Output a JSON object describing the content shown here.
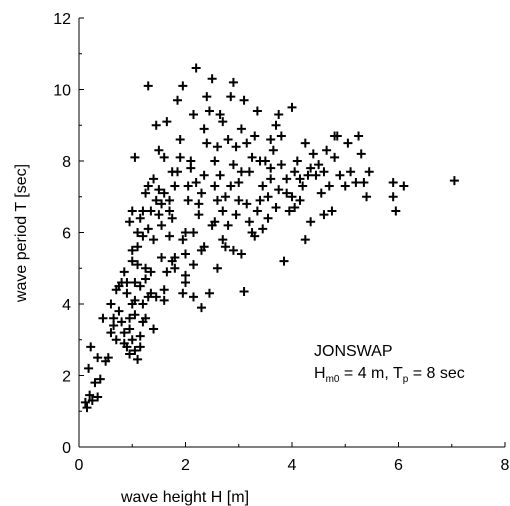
{
  "chart_data": {
    "type": "scatter",
    "marker": "plus",
    "title": "",
    "xlabel": "wave height H [m]",
    "ylabel": "wave period T [sec]",
    "xlim": [
      0,
      8
    ],
    "ylim": [
      0,
      12
    ],
    "xticks": [
      0,
      2,
      4,
      6,
      8
    ],
    "yticks": [
      0,
      2,
      4,
      6,
      8,
      10,
      12
    ],
    "grid": false,
    "annotation": {
      "line1": "JONSWAP",
      "h_main": "H",
      "h_sub": "m0",
      "h_rest": " = 4 m, T",
      "t_sub": "p",
      "t_rest": " = 8 sec"
    },
    "points": [
      [
        0.12,
        1.25
      ],
      [
        0.15,
        1.1
      ],
      [
        0.2,
        1.45
      ],
      [
        0.25,
        1.3
      ],
      [
        0.3,
        1.8
      ],
      [
        0.35,
        1.4
      ],
      [
        0.4,
        1.9
      ],
      [
        0.18,
        2.2
      ],
      [
        0.22,
        2.8
      ],
      [
        0.35,
        2.5
      ],
      [
        0.45,
        3.6
      ],
      [
        0.5,
        2.4
      ],
      [
        0.55,
        2.5
      ],
      [
        0.6,
        3.2
      ],
      [
        0.65,
        3.4
      ],
      [
        0.7,
        3.0
      ],
      [
        0.75,
        3.8
      ],
      [
        0.8,
        4.6
      ],
      [
        0.85,
        4.9
      ],
      [
        0.9,
        4.3
      ],
      [
        0.95,
        3.6
      ],
      [
        1.0,
        5.2
      ],
      [
        1.05,
        4.1
      ],
      [
        1.1,
        5.6
      ],
      [
        0.6,
        4.0
      ],
      [
        0.7,
        4.4
      ],
      [
        0.8,
        3.5
      ],
      [
        0.85,
        2.9
      ],
      [
        0.9,
        2.8
      ],
      [
        0.95,
        2.6
      ],
      [
        1.0,
        3.0
      ],
      [
        1.05,
        2.7
      ],
      [
        1.1,
        2.45
      ],
      [
        1.15,
        2.8
      ],
      [
        1.2,
        3.5
      ],
      [
        1.25,
        3.6
      ],
      [
        0.95,
        6.3
      ],
      [
        1.0,
        6.6
      ],
      [
        1.0,
        5.5
      ],
      [
        1.05,
        8.1
      ],
      [
        1.1,
        6.0
      ],
      [
        1.15,
        4.5
      ],
      [
        1.2,
        4.0
      ],
      [
        1.25,
        5.0
      ],
      [
        1.3,
        10.1
      ],
      [
        1.35,
        4.3
      ],
      [
        1.4,
        5.8
      ],
      [
        1.45,
        6.9
      ],
      [
        1.5,
        8.3
      ],
      [
        1.5,
        7.2
      ],
      [
        1.55,
        6.2
      ],
      [
        1.6,
        4.1
      ],
      [
        1.65,
        9.1
      ],
      [
        1.7,
        6.6
      ],
      [
        1.75,
        7.7
      ],
      [
        1.8,
        5.3
      ],
      [
        1.85,
        9.7
      ],
      [
        1.9,
        8.6
      ],
      [
        1.95,
        10.1
      ],
      [
        2.0,
        6.0
      ],
      [
        2.0,
        4.8
      ],
      [
        2.05,
        7.3
      ],
      [
        2.1,
        8.0
      ],
      [
        2.15,
        9.3
      ],
      [
        2.2,
        10.6
      ],
      [
        2.25,
        6.8
      ],
      [
        2.3,
        5.5
      ],
      [
        2.35,
        7.6
      ],
      [
        2.4,
        9.8
      ],
      [
        2.45,
        4.3
      ],
      [
        2.5,
        10.3
      ],
      [
        2.55,
        6.3
      ],
      [
        2.6,
        8.4
      ],
      [
        2.65,
        9.3
      ],
      [
        2.7,
        5.8
      ],
      [
        2.75,
        7.0
      ],
      [
        2.8,
        8.6
      ],
      [
        2.85,
        9.8
      ],
      [
        2.9,
        10.2
      ],
      [
        2.95,
        6.5
      ],
      [
        3.0,
        7.4
      ],
      [
        3.05,
        8.9
      ],
      [
        3.1,
        9.7
      ],
      [
        3.15,
        6.8
      ],
      [
        3.2,
        7.7
      ],
      [
        3.25,
        8.1
      ],
      [
        3.3,
        5.9
      ],
      [
        3.35,
        9.4
      ],
      [
        3.4,
        6.9
      ],
      [
        3.45,
        7.3
      ],
      [
        3.5,
        8.0
      ],
      [
        3.55,
        6.4
      ],
      [
        3.6,
        7.8
      ],
      [
        3.65,
        8.3
      ],
      [
        3.7,
        6.7
      ],
      [
        3.75,
        7.2
      ],
      [
        3.8,
        8.7
      ],
      [
        3.85,
        5.2
      ],
      [
        3.9,
        7.5
      ],
      [
        3.95,
        6.6
      ],
      [
        4.0,
        9.5
      ],
      [
        4.05,
        7.7
      ],
      [
        4.1,
        8.0
      ],
      [
        4.15,
        6.9
      ],
      [
        4.2,
        7.3
      ],
      [
        4.25,
        8.5
      ],
      [
        4.3,
        7.6
      ],
      [
        4.35,
        6.3
      ],
      [
        4.4,
        8.2
      ],
      [
        4.5,
        7.9
      ],
      [
        4.55,
        7.1
      ],
      [
        4.6,
        6.5
      ],
      [
        4.65,
        8.3
      ],
      [
        4.7,
        7.3
      ],
      [
        4.75,
        6.6
      ],
      [
        4.8,
        8.1
      ],
      [
        4.85,
        8.7
      ],
      [
        4.9,
        7.6
      ],
      [
        5.0,
        7.3
      ],
      [
        5.05,
        8.5
      ],
      [
        5.1,
        7.7
      ],
      [
        5.2,
        7.4
      ],
      [
        5.25,
        8.7
      ],
      [
        5.3,
        8.2
      ],
      [
        5.35,
        7.4
      ],
      [
        5.4,
        7.0
      ],
      [
        5.45,
        7.7
      ],
      [
        5.9,
        7.4
      ],
      [
        5.9,
        7.0
      ],
      [
        5.95,
        6.6
      ],
      [
        6.1,
        7.3
      ],
      [
        7.05,
        7.45
      ],
      [
        4.8,
        8.7
      ],
      [
        3.1,
        4.35
      ],
      [
        2.0,
        4.6
      ],
      [
        1.6,
        4.4
      ],
      [
        1.4,
        3.3
      ],
      [
        1.3,
        4.2
      ],
      [
        1.75,
        5.2
      ],
      [
        2.3,
        7.1
      ],
      [
        2.5,
        6.2
      ],
      [
        2.15,
        6.0
      ],
      [
        3.2,
        6.3
      ],
      [
        3.75,
        9.3
      ],
      [
        4.25,
        5.8
      ],
      [
        2.7,
        6.6
      ],
      [
        1.85,
        7.7
      ],
      [
        1.6,
        8.1
      ],
      [
        1.5,
        6.5
      ],
      [
        1.3,
        6.1
      ],
      [
        1.2,
        5.9
      ],
      [
        1.15,
        6.4
      ],
      [
        1.45,
        9.0
      ],
      [
        2.55,
        8.0
      ],
      [
        2.4,
        8.5
      ],
      [
        2.85,
        7.3
      ],
      [
        3.4,
        8.0
      ],
      [
        3.05,
        7.7
      ],
      [
        2.95,
        8.4
      ],
      [
        1.95,
        5.8
      ],
      [
        2.25,
        6.5
      ],
      [
        2.05,
        6.9
      ],
      [
        1.75,
        6.4
      ],
      [
        1.55,
        6.8
      ],
      [
        1.35,
        6.6
      ],
      [
        1.25,
        7.1
      ],
      [
        2.6,
        6.9
      ],
      [
        2.65,
        7.6
      ],
      [
        3.55,
        7.0
      ],
      [
        3.6,
        7.5
      ],
      [
        2.0,
        5.4
      ],
      [
        1.8,
        5.0
      ],
      [
        1.7,
        5.9
      ],
      [
        1.65,
        4.9
      ],
      [
        1.55,
        5.3
      ],
      [
        1.25,
        4.7
      ],
      [
        1.35,
        4.9
      ],
      [
        1.05,
        4.6
      ],
      [
        1.45,
        4.2
      ],
      [
        1.95,
        4.3
      ],
      [
        2.15,
        4.2
      ],
      [
        2.3,
        3.9
      ],
      [
        2.6,
        5.0
      ],
      [
        2.75,
        5.6
      ],
      [
        2.9,
        5.5
      ],
      [
        3.05,
        5.4
      ],
      [
        3.25,
        6.0
      ],
      [
        3.45,
        6.1
      ],
      [
        2.35,
        8.9
      ],
      [
        2.45,
        9.4
      ],
      [
        2.7,
        9.1
      ],
      [
        2.55,
        7.3
      ],
      [
        2.9,
        7.9
      ],
      [
        3.15,
        8.5
      ],
      [
        3.3,
        8.7
      ],
      [
        3.6,
        8.6
      ],
      [
        3.7,
        9.0
      ],
      [
        3.8,
        7.9
      ],
      [
        4.15,
        7.5
      ],
      [
        4.35,
        7.8
      ],
      [
        2.2,
        7.4
      ],
      [
        2.1,
        7.8
      ],
      [
        1.9,
        8.1
      ],
      [
        1.8,
        7.3
      ],
      [
        1.7,
        6.9
      ],
      [
        1.4,
        7.5
      ],
      [
        1.6,
        7.1
      ],
      [
        2.8,
        6.2
      ],
      [
        3.35,
        6.6
      ],
      [
        3.0,
        6.9
      ],
      [
        4.0,
        7.0
      ],
      [
        4.45,
        7.6
      ],
      [
        4.6,
        7.7
      ],
      [
        4.05,
        6.7
      ],
      [
        3.9,
        7.1
      ],
      [
        1.1,
        5.1
      ],
      [
        1.2,
        6.6
      ],
      [
        1.3,
        7.3
      ],
      [
        2.35,
        5.6
      ],
      [
        2.15,
        5.1
      ],
      [
        0.75,
        4.5
      ],
      [
        0.65,
        3.6
      ],
      [
        0.85,
        3.2
      ],
      [
        0.95,
        3.3
      ],
      [
        1.05,
        3.7
      ],
      [
        1.15,
        3.1
      ],
      [
        1.0,
        4.0
      ],
      [
        0.9,
        4.6
      ]
    ]
  }
}
